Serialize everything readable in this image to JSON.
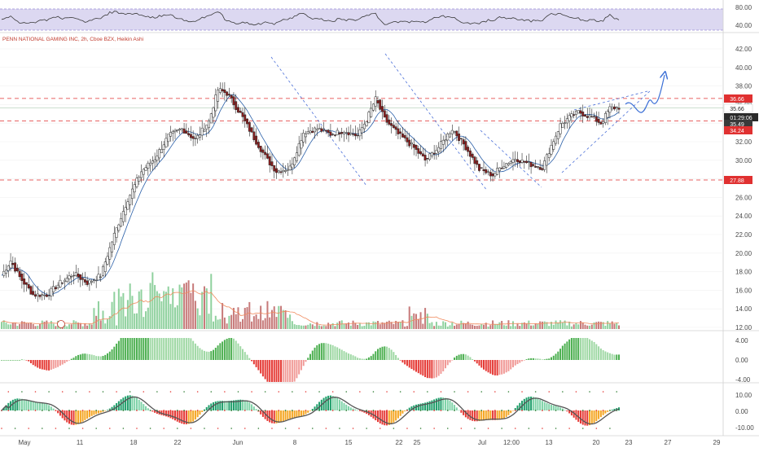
{
  "header": {
    "title": "PENN NATIONAL GAMING INC, 2h, Cboe BZX, Heikin Ashi"
  },
  "colors": {
    "up": "#ffffff",
    "down": "#8b1e1e",
    "wick": "#2a2a2a",
    "ma": "#2a5fa8",
    "level": "#e03030",
    "trend": "#4a6fd8",
    "vol_up": "#8fd19e",
    "vol_down": "#c77a7a",
    "vol_ma": "#f08a5d",
    "rsi_line": "#3a3a3a",
    "rsi_band": "#9b8fd6",
    "ao_up": "#4caf50",
    "ao_down": "#e53935",
    "arrow": "#3b6fd6"
  },
  "price_axis": {
    "ticks": [
      "42.00",
      "40.00",
      "38.00",
      "36.00",
      "34.00",
      "32.00",
      "30.00",
      "28.00",
      "26.00",
      "24.00",
      "22.00",
      "20.00",
      "18.00",
      "16.00",
      "14.00",
      "12.00"
    ],
    "ylim": [
      12,
      43
    ]
  },
  "rsi_axis": {
    "ticks": [
      "80.00",
      "40.00"
    ],
    "ylim": [
      30,
      90
    ]
  },
  "osc1_axis": {
    "ticks": [
      "4.00",
      "0.00",
      "-4.00"
    ],
    "ylim": [
      -6,
      6
    ]
  },
  "osc2_axis": {
    "ticks": [
      "10.00",
      "0.00",
      "-10.00"
    ],
    "ylim": [
      -15,
      14
    ]
  },
  "x_axis": {
    "ticks": [
      "May",
      "11",
      "18",
      "22",
      "Jun",
      "8",
      "15",
      "22",
      "25",
      "Jul",
      "12:00",
      "13",
      "20",
      "23",
      "27",
      "29"
    ]
  },
  "price_labels": {
    "level_upper": "36.66",
    "last": "35.66",
    "countdown": "01:29:06",
    "current": "35.49",
    "level_mid": "34.24",
    "level_low": "27.88"
  },
  "chart_data": {
    "type": "candlestick",
    "title": "PENN NATIONAL GAMING INC, 2h, Cboe BZX, Heikin Ashi",
    "anchors": [
      [
        0,
        17.6
      ],
      [
        4,
        19.2
      ],
      [
        8,
        17.4
      ],
      [
        14,
        15.5
      ],
      [
        20,
        15.5
      ],
      [
        26,
        16.8
      ],
      [
        32,
        17.8
      ],
      [
        38,
        16.8
      ],
      [
        44,
        17.6
      ],
      [
        50,
        22
      ],
      [
        56,
        25.8
      ],
      [
        62,
        28.8
      ],
      [
        68,
        30.2
      ],
      [
        74,
        32.6
      ],
      [
        80,
        33.4
      ],
      [
        86,
        32.2
      ],
      [
        92,
        34.2
      ],
      [
        96,
        37.6
      ],
      [
        100,
        37.2
      ],
      [
        106,
        35
      ],
      [
        112,
        32.4
      ],
      [
        118,
        30
      ],
      [
        122,
        28.8
      ],
      [
        128,
        29.2
      ],
      [
        134,
        33
      ],
      [
        140,
        33.4
      ],
      [
        146,
        32.8
      ],
      [
        152,
        33.2
      ],
      [
        158,
        32.6
      ],
      [
        162,
        34.4
      ],
      [
        166,
        36.6
      ],
      [
        170,
        34.4
      ],
      [
        176,
        32.8
      ],
      [
        182,
        31.6
      ],
      [
        188,
        30
      ],
      [
        194,
        31.4
      ],
      [
        200,
        33.4
      ],
      [
        206,
        31.4
      ],
      [
        212,
        29
      ],
      [
        218,
        28.4
      ],
      [
        222,
        29.4
      ],
      [
        228,
        30.2
      ],
      [
        234,
        29.6
      ],
      [
        240,
        29.2
      ],
      [
        244,
        31.6
      ],
      [
        248,
        33.8
      ],
      [
        252,
        34.6
      ],
      [
        256,
        35.2
      ],
      [
        262,
        34.6
      ],
      [
        266,
        34
      ],
      [
        270,
        35.6
      ],
      [
        274,
        35.7
      ]
    ],
    "bars": 275,
    "levels": [
      36.66,
      34.24,
      27.88
    ],
    "last_price": 35.66,
    "current_price": 35.49,
    "rsi_range": [
      40,
      80
    ],
    "volume": "bars with moving average",
    "indicators": [
      "RSI",
      "Awesome Oscillator",
      "Squeeze Momentum"
    ]
  }
}
